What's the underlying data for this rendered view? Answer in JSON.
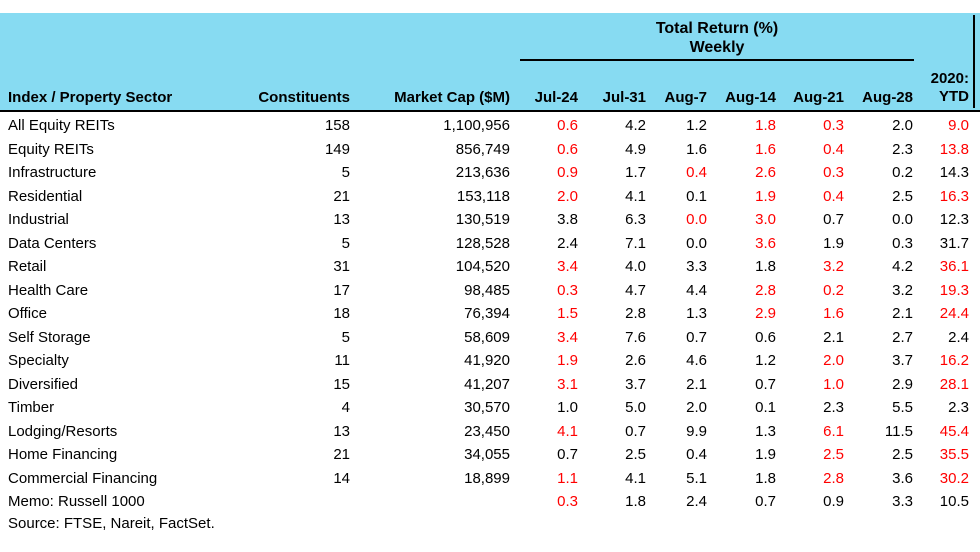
{
  "colors": {
    "header_bg": "#87DBF2",
    "negative": "#FF0000",
    "text": "#000000"
  },
  "table": {
    "group_header": {
      "line1": "Total Return (%)",
      "line2": "Weekly"
    },
    "columns": {
      "sector": "Index / Property Sector",
      "constituents": "Constituents",
      "market_cap": "Market Cap ($M)",
      "weeks": [
        "Jul-24",
        "Jul-31",
        "Aug-7",
        "Aug-14",
        "Aug-21",
        "Aug-28"
      ],
      "ytd_line1": "2020:",
      "ytd_line2": "YTD"
    },
    "rows": [
      {
        "sector": "All Equity REITs",
        "constituents": "158",
        "market_cap": "1,100,956",
        "returns": [
          [
            "0.6",
            1
          ],
          [
            "4.2",
            0
          ],
          [
            "1.2",
            0
          ],
          [
            "1.8",
            1
          ],
          [
            "0.3",
            1
          ],
          [
            "2.0",
            0
          ]
        ],
        "ytd": [
          "9.0",
          1
        ]
      },
      {
        "sector": "Equity REITs",
        "constituents": "149",
        "market_cap": "856,749",
        "returns": [
          [
            "0.6",
            1
          ],
          [
            "4.9",
            0
          ],
          [
            "1.6",
            0
          ],
          [
            "1.6",
            1
          ],
          [
            "0.4",
            1
          ],
          [
            "2.3",
            0
          ]
        ],
        "ytd": [
          "13.8",
          1
        ]
      },
      {
        "sector": "Infrastructure",
        "constituents": "5",
        "market_cap": "213,636",
        "returns": [
          [
            "0.9",
            1
          ],
          [
            "1.7",
            0
          ],
          [
            "0.4",
            1
          ],
          [
            "2.6",
            1
          ],
          [
            "0.3",
            1
          ],
          [
            "0.2",
            0
          ]
        ],
        "ytd": [
          "14.3",
          0
        ]
      },
      {
        "sector": "Residential",
        "constituents": "21",
        "market_cap": "153,118",
        "returns": [
          [
            "2.0",
            1
          ],
          [
            "4.1",
            0
          ],
          [
            "0.1",
            0
          ],
          [
            "1.9",
            1
          ],
          [
            "0.4",
            1
          ],
          [
            "2.5",
            0
          ]
        ],
        "ytd": [
          "16.3",
          1
        ]
      },
      {
        "sector": "Industrial",
        "constituents": "13",
        "market_cap": "130,519",
        "returns": [
          [
            "3.8",
            0
          ],
          [
            "6.3",
            0
          ],
          [
            "0.0",
            1
          ],
          [
            "3.0",
            1
          ],
          [
            "0.7",
            0
          ],
          [
            "0.0",
            0
          ]
        ],
        "ytd": [
          "12.3",
          0
        ]
      },
      {
        "sector": "Data Centers",
        "constituents": "5",
        "market_cap": "128,528",
        "returns": [
          [
            "2.4",
            0
          ],
          [
            "7.1",
            0
          ],
          [
            "0.0",
            0
          ],
          [
            "3.6",
            1
          ],
          [
            "1.9",
            0
          ],
          [
            "0.3",
            0
          ]
        ],
        "ytd": [
          "31.7",
          0
        ]
      },
      {
        "sector": "Retail",
        "constituents": "31",
        "market_cap": "104,520",
        "returns": [
          [
            "3.4",
            1
          ],
          [
            "4.0",
            0
          ],
          [
            "3.3",
            0
          ],
          [
            "1.8",
            0
          ],
          [
            "3.2",
            1
          ],
          [
            "4.2",
            0
          ]
        ],
        "ytd": [
          "36.1",
          1
        ]
      },
      {
        "sector": "Health Care",
        "constituents": "17",
        "market_cap": "98,485",
        "returns": [
          [
            "0.3",
            1
          ],
          [
            "4.7",
            0
          ],
          [
            "4.4",
            0
          ],
          [
            "2.8",
            1
          ],
          [
            "0.2",
            1
          ],
          [
            "3.2",
            0
          ]
        ],
        "ytd": [
          "19.3",
          1
        ]
      },
      {
        "sector": "Office",
        "constituents": "18",
        "market_cap": "76,394",
        "returns": [
          [
            "1.5",
            1
          ],
          [
            "2.8",
            0
          ],
          [
            "1.3",
            0
          ],
          [
            "2.9",
            1
          ],
          [
            "1.6",
            1
          ],
          [
            "2.1",
            0
          ]
        ],
        "ytd": [
          "24.4",
          1
        ]
      },
      {
        "sector": "Self Storage",
        "constituents": "5",
        "market_cap": "58,609",
        "returns": [
          [
            "3.4",
            1
          ],
          [
            "7.6",
            0
          ],
          [
            "0.7",
            0
          ],
          [
            "0.6",
            0
          ],
          [
            "2.1",
            0
          ],
          [
            "2.7",
            0
          ]
        ],
        "ytd": [
          "2.4",
          0
        ]
      },
      {
        "sector": "Specialty",
        "constituents": "11",
        "market_cap": "41,920",
        "returns": [
          [
            "1.9",
            1
          ],
          [
            "2.6",
            0
          ],
          [
            "4.6",
            0
          ],
          [
            "1.2",
            0
          ],
          [
            "2.0",
            1
          ],
          [
            "3.7",
            0
          ]
        ],
        "ytd": [
          "16.2",
          1
        ]
      },
      {
        "sector": "Diversified",
        "constituents": "15",
        "market_cap": "41,207",
        "returns": [
          [
            "3.1",
            1
          ],
          [
            "3.7",
            0
          ],
          [
            "2.1",
            0
          ],
          [
            "0.7",
            0
          ],
          [
            "1.0",
            1
          ],
          [
            "2.9",
            0
          ]
        ],
        "ytd": [
          "28.1",
          1
        ]
      },
      {
        "sector": "Timber",
        "constituents": "4",
        "market_cap": "30,570",
        "returns": [
          [
            "1.0",
            0
          ],
          [
            "5.0",
            0
          ],
          [
            "2.0",
            0
          ],
          [
            "0.1",
            0
          ],
          [
            "2.3",
            0
          ],
          [
            "5.5",
            0
          ]
        ],
        "ytd": [
          "2.3",
          0
        ]
      },
      {
        "sector": "Lodging/Resorts",
        "constituents": "13",
        "market_cap": "23,450",
        "returns": [
          [
            "4.1",
            1
          ],
          [
            "0.7",
            0
          ],
          [
            "9.9",
            0
          ],
          [
            "1.3",
            0
          ],
          [
            "6.1",
            1
          ],
          [
            "11.5",
            0
          ]
        ],
        "ytd": [
          "45.4",
          1
        ]
      },
      {
        "sector": "Home Financing",
        "constituents": "21",
        "market_cap": "34,055",
        "returns": [
          [
            "0.7",
            0
          ],
          [
            "2.5",
            0
          ],
          [
            "0.4",
            0
          ],
          [
            "1.9",
            0
          ],
          [
            "2.5",
            1
          ],
          [
            "2.5",
            0
          ]
        ],
        "ytd": [
          "35.5",
          1
        ]
      },
      {
        "sector": "Commercial Financing",
        "constituents": "14",
        "market_cap": "18,899",
        "returns": [
          [
            "1.1",
            1
          ],
          [
            "4.1",
            0
          ],
          [
            "5.1",
            0
          ],
          [
            "1.8",
            0
          ],
          [
            "2.8",
            1
          ],
          [
            "3.6",
            0
          ]
        ],
        "ytd": [
          "30.2",
          1
        ]
      },
      {
        "sector": "Memo: Russell 1000",
        "constituents": "",
        "market_cap": "",
        "returns": [
          [
            "0.3",
            1
          ],
          [
            "1.8",
            0
          ],
          [
            "2.4",
            0
          ],
          [
            "0.7",
            0
          ],
          [
            "0.9",
            0
          ],
          [
            "3.3",
            0
          ]
        ],
        "ytd": [
          "10.5",
          0
        ]
      }
    ],
    "source": "Source: FTSE, Nareit, FactSet."
  }
}
